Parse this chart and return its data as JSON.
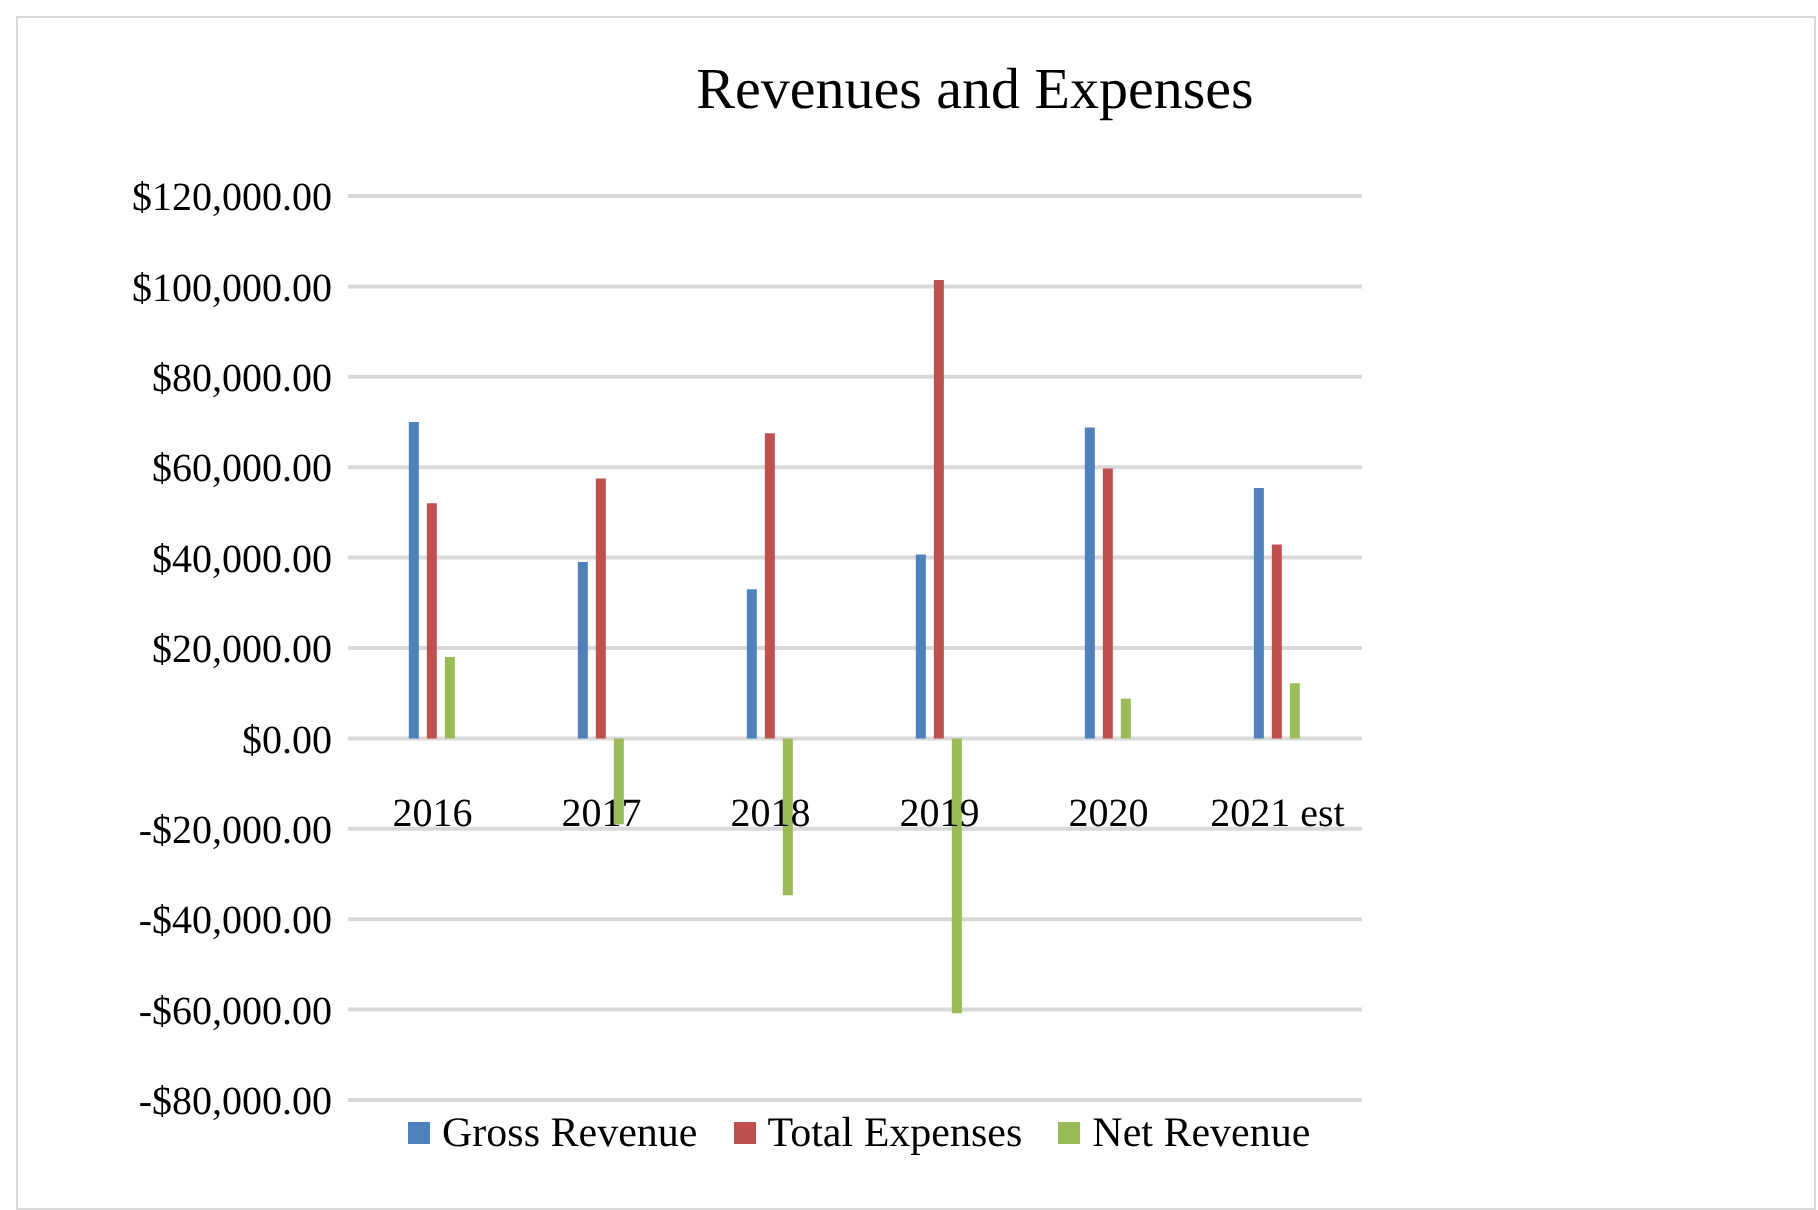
{
  "chart_data": {
    "type": "bar",
    "title": "Revenues and Expenses",
    "categories": [
      "2016",
      "2017",
      "2018",
      "2019",
      "2020",
      "2021 est"
    ],
    "series": [
      {
        "name": "Gross Revenue",
        "color": "#4f81bd",
        "values": [
          70000,
          39000,
          33000,
          40700,
          68800,
          55400
        ]
      },
      {
        "name": "Total Expenses",
        "color": "#c0504d",
        "values": [
          52000,
          57500,
          67500,
          101400,
          59700,
          42900
        ]
      },
      {
        "name": "Net Revenue",
        "color": "#9bbb59",
        "values": [
          18000,
          -19000,
          -34700,
          -60800,
          8800,
          12200
        ]
      }
    ],
    "ylim": [
      -80000,
      120000
    ],
    "yticks": [
      {
        "value": -80000,
        "label": "-$80,000.00"
      },
      {
        "value": -60000,
        "label": "-$60,000.00"
      },
      {
        "value": -40000,
        "label": "-$40,000.00"
      },
      {
        "value": -20000,
        "label": "-$20,000.00"
      },
      {
        "value": 0,
        "label": "$0.00"
      },
      {
        "value": 20000,
        "label": "$20,000.00"
      },
      {
        "value": 40000,
        "label": "$40,000.00"
      },
      {
        "value": 60000,
        "label": "$60,000.00"
      },
      {
        "value": 80000,
        "label": "$80,000.00"
      },
      {
        "value": 100000,
        "label": "$100,000.00"
      },
      {
        "value": 120000,
        "label": "$120,000.00"
      }
    ],
    "grid": "y",
    "legend": "bottom"
  }
}
